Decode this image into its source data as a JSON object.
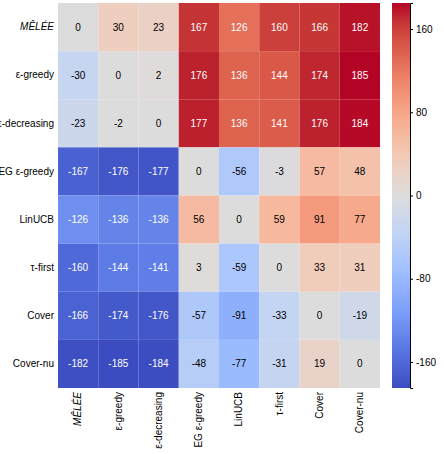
{
  "chart_data": {
    "type": "heatmap",
    "x_categories": [
      "MÊLÉE",
      "ε-greedy",
      "ε-decreasing",
      "EG ε-greedy",
      "LinUCB",
      "τ-first",
      "Cover",
      "Cover-nu"
    ],
    "y_categories": [
      "MÊLÉE",
      "ε-greedy",
      "ε-decreasing",
      "EG ε-greedy",
      "LinUCB",
      "τ-first",
      "Cover",
      "Cover-nu"
    ],
    "values": [
      [
        0,
        30,
        23,
        167,
        126,
        160,
        166,
        182
      ],
      [
        -30,
        0,
        2,
        176,
        136,
        144,
        174,
        185
      ],
      [
        -23,
        -2,
        0,
        177,
        136,
        141,
        176,
        184
      ],
      [
        -167,
        -176,
        -177,
        0,
        -56,
        -3,
        57,
        48
      ],
      [
        -126,
        -136,
        -136,
        56,
        0,
        59,
        91,
        77
      ],
      [
        -160,
        -144,
        -141,
        3,
        -59,
        0,
        33,
        31
      ],
      [
        -166,
        -174,
        -176,
        -57,
        -91,
        -33,
        0,
        -19
      ],
      [
        -182,
        -185,
        -184,
        -48,
        -77,
        -31,
        19,
        0
      ]
    ],
    "data_labels": true,
    "colorbar_range": [
      -185,
      185
    ],
    "colorbar_ticks": [
      -160,
      -80,
      0,
      80,
      160
    ]
  }
}
